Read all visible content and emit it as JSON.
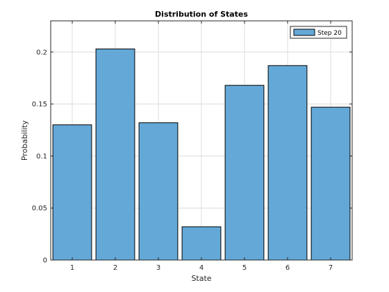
{
  "chart_data": {
    "type": "bar",
    "title": "Distribution of States",
    "xlabel": "State",
    "ylabel": "Probability",
    "categories": [
      "1",
      "2",
      "3",
      "4",
      "5",
      "6",
      "7"
    ],
    "series": [
      {
        "name": "Step 20",
        "values": [
          0.13,
          0.203,
          0.132,
          0.032,
          0.168,
          0.187,
          0.147
        ],
        "color": "#64a8d8"
      }
    ],
    "ylim": [
      0,
      0.23
    ],
    "yticks": [
      0,
      0.05,
      0.1,
      0.15,
      0.2
    ],
    "ytick_labels": [
      "0",
      "0.05",
      "0.1",
      "0.15",
      "0.2"
    ],
    "grid": true,
    "legend_position": "top-right"
  }
}
